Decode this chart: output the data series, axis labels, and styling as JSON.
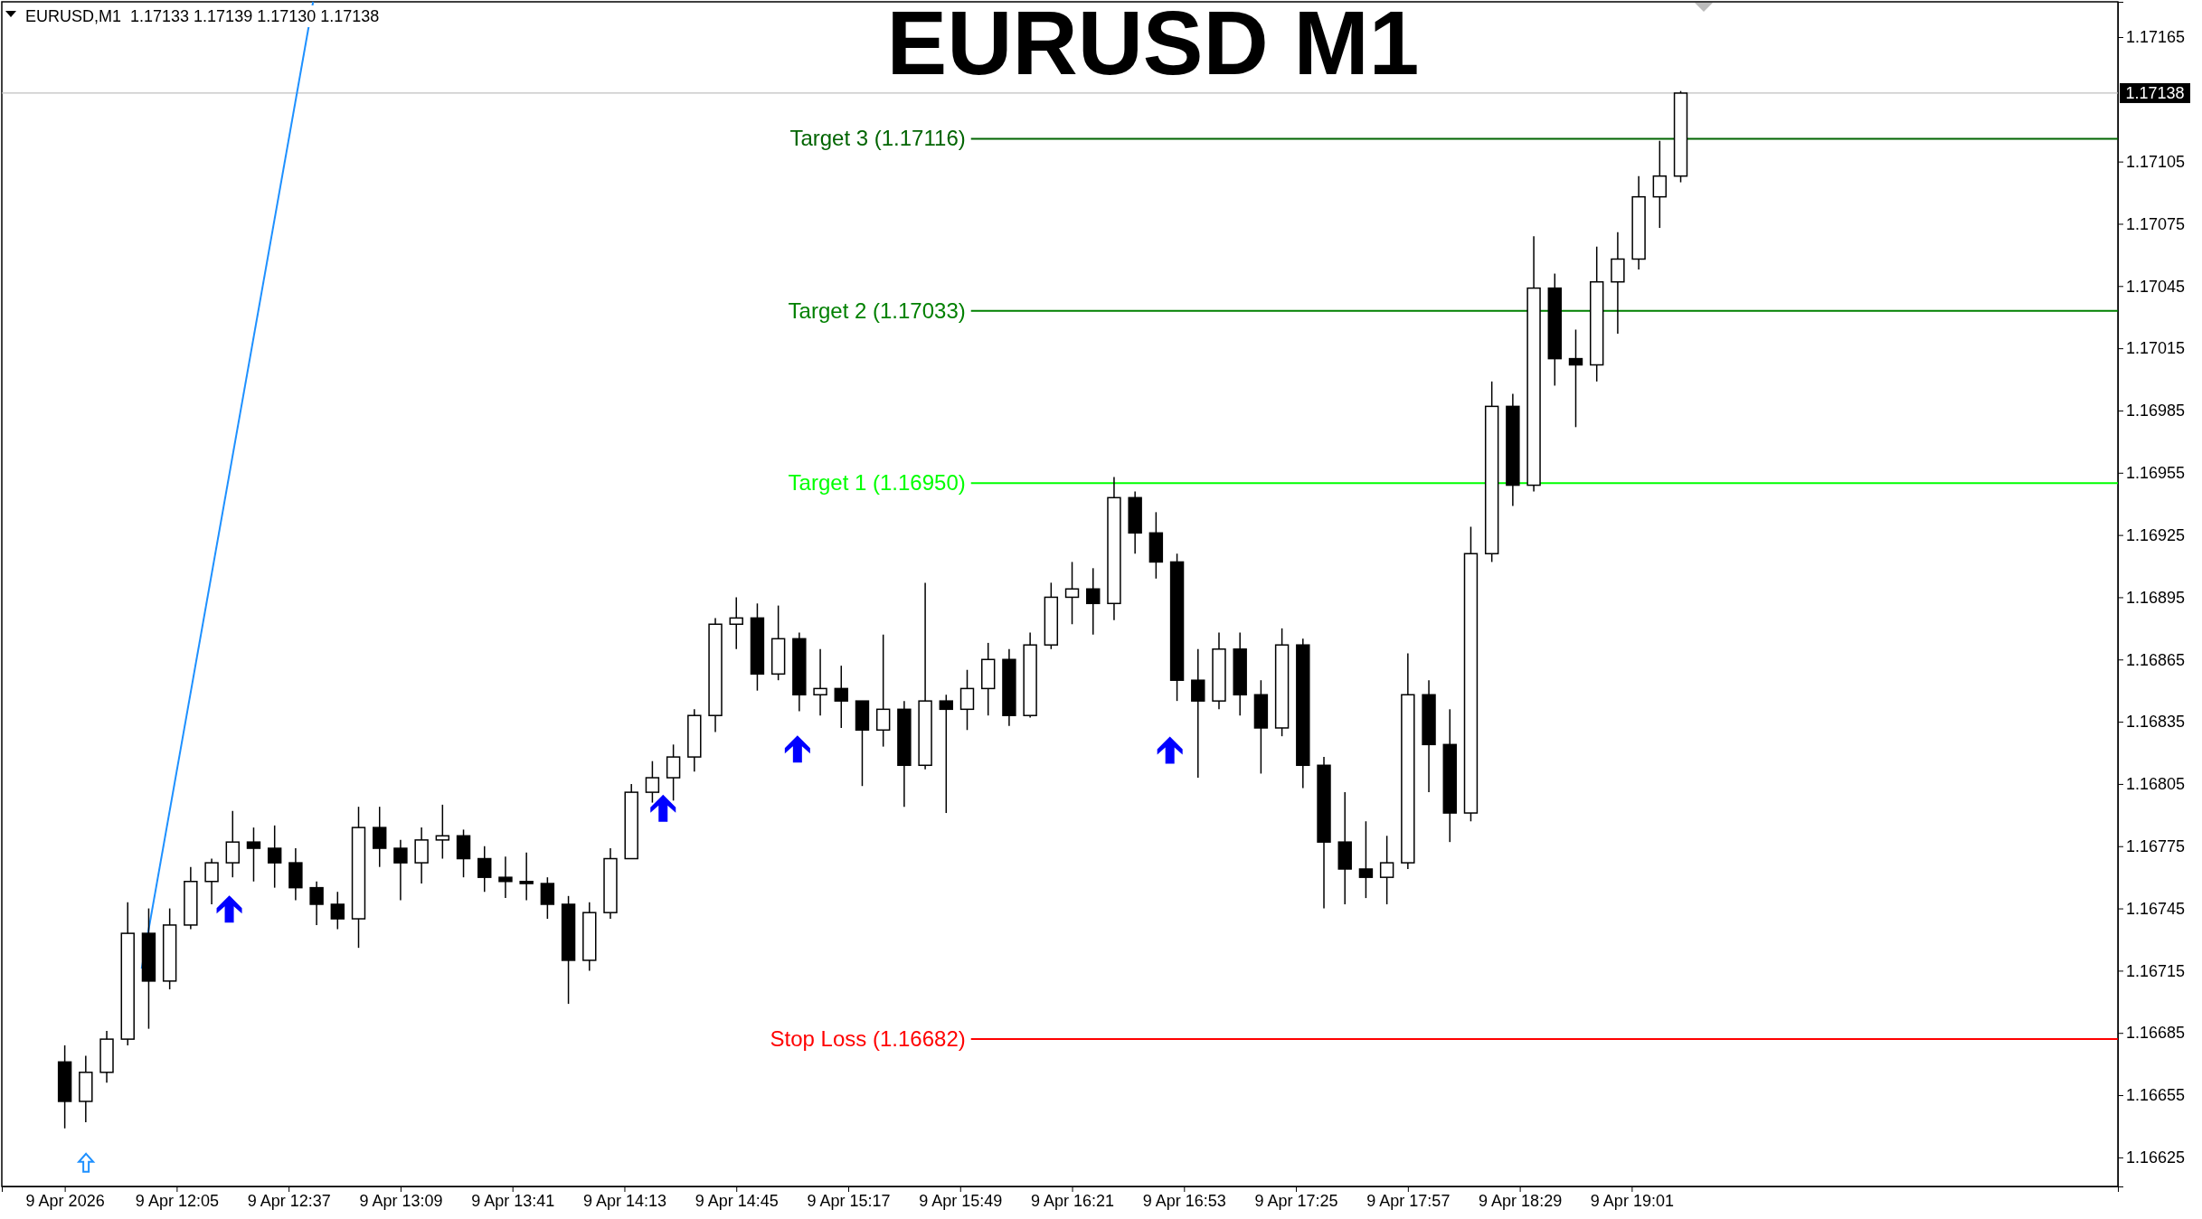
{
  "chart_data": {
    "type": "candlestick",
    "title": "EURUSD M1",
    "annotations": [
      "EURUSD,M1  1.17133 1.17139 1.17130 1.17138"
    ],
    "x": [
      "2026-04-09T11:33",
      "2026-04-09T11:39",
      "2026-04-09T11:45",
      "2026-04-09T11:51",
      "2026-04-09T11:57",
      "2026-04-09T12:03",
      "2026-04-09T12:09",
      "2026-04-09T12:15",
      "2026-04-09T12:21",
      "2026-04-09T12:27",
      "2026-04-09T12:33",
      "2026-04-09T12:39",
      "2026-04-09T12:45",
      "2026-04-09T12:51",
      "2026-04-09T12:57",
      "2026-04-09T13:03",
      "2026-04-09T13:09",
      "2026-04-09T13:15",
      "2026-04-09T13:21",
      "2026-04-09T13:27",
      "2026-04-09T13:33",
      "2026-04-09T13:39",
      "2026-04-09T13:45",
      "2026-04-09T13:51",
      "2026-04-09T13:57",
      "2026-04-09T14:03",
      "2026-04-09T14:09",
      "2026-04-09T14:15",
      "2026-04-09T14:21",
      "2026-04-09T14:27",
      "2026-04-09T14:33",
      "2026-04-09T14:39",
      "2026-04-09T14:45",
      "2026-04-09T14:51",
      "2026-04-09T14:57",
      "2026-04-09T15:03",
      "2026-04-09T15:09",
      "2026-04-09T15:15",
      "2026-04-09T15:21",
      "2026-04-09T15:27",
      "2026-04-09T15:33",
      "2026-04-09T15:39",
      "2026-04-09T15:45",
      "2026-04-09T15:51",
      "2026-04-09T15:57",
      "2026-04-09T16:03",
      "2026-04-09T16:09",
      "2026-04-09T16:15",
      "2026-04-09T16:21",
      "2026-04-09T16:27",
      "2026-04-09T16:33",
      "2026-04-09T16:39",
      "2026-04-09T16:45",
      "2026-04-09T16:51",
      "2026-04-09T16:57",
      "2026-04-09T17:03",
      "2026-04-09T17:09",
      "2026-04-09T17:15",
      "2026-04-09T17:21",
      "2026-04-09T17:27",
      "2026-04-09T17:33",
      "2026-04-09T17:39",
      "2026-04-09T17:45",
      "2026-04-09T17:51",
      "2026-04-09T17:57",
      "2026-04-09T18:03",
      "2026-04-09T18:09",
      "2026-04-09T18:15",
      "2026-04-09T18:21",
      "2026-04-09T18:27",
      "2026-04-09T18:33",
      "2026-04-09T18:39",
      "2026-04-09T18:45",
      "2026-04-09T18:51",
      "2026-04-09T18:57",
      "2026-04-09T19:03",
      "2026-04-09T19:09",
      "2026-04-09T19:15"
    ],
    "ohlc": [
      [
        1.16671,
        1.16679,
        1.16639,
        1.16652
      ],
      [
        1.16652,
        1.16674,
        1.16642,
        1.16666
      ],
      [
        1.16666,
        1.16686,
        1.16661,
        1.16682
      ],
      [
        1.16682,
        1.16748,
        1.16679,
        1.16733
      ],
      [
        1.16733,
        1.16745,
        1.16687,
        1.1671
      ],
      [
        1.1671,
        1.16745,
        1.16706,
        1.16737
      ],
      [
        1.16737,
        1.16765,
        1.16735,
        1.16758
      ],
      [
        1.16758,
        1.16769,
        1.16747,
        1.16767
      ],
      [
        1.16767,
        1.16792,
        1.1676,
        1.16777
      ],
      [
        1.16777,
        1.16784,
        1.16758,
        1.16774
      ],
      [
        1.16774,
        1.16785,
        1.16755,
        1.16767
      ],
      [
        1.16767,
        1.16774,
        1.16749,
        1.16755
      ],
      [
        1.16755,
        1.16758,
        1.16737,
        1.16747
      ],
      [
        1.16747,
        1.16753,
        1.16735,
        1.1674
      ],
      [
        1.1674,
        1.16794,
        1.16726,
        1.16784
      ],
      [
        1.16784,
        1.16794,
        1.16765,
        1.16774
      ],
      [
        1.16774,
        1.16778,
        1.16749,
        1.16767
      ],
      [
        1.16767,
        1.16784,
        1.16757,
        1.16778
      ],
      [
        1.16778,
        1.16795,
        1.16769,
        1.1678
      ],
      [
        1.1678,
        1.16783,
        1.1676,
        1.16769
      ],
      [
        1.16769,
        1.16775,
        1.16753,
        1.1676
      ],
      [
        1.1676,
        1.1677,
        1.1675,
        1.16758
      ],
      [
        1.16758,
        1.16772,
        1.16749,
        1.16757
      ],
      [
        1.16757,
        1.1676,
        1.1674,
        1.16747
      ],
      [
        1.16747,
        1.16751,
        1.16699,
        1.1672
      ],
      [
        1.1672,
        1.16748,
        1.16715,
        1.16743
      ],
      [
        1.16743,
        1.16774,
        1.1674,
        1.16769
      ],
      [
        1.16769,
        1.16805,
        1.16769,
        1.16801
      ],
      [
        1.16801,
        1.16816,
        1.16796,
        1.16808
      ],
      [
        1.16808,
        1.16824,
        1.16797,
        1.16818
      ],
      [
        1.16818,
        1.16841,
        1.16811,
        1.16838
      ],
      [
        1.16838,
        1.16885,
        1.1683,
        1.16882
      ],
      [
        1.16882,
        1.16895,
        1.1687,
        1.16885
      ],
      [
        1.16885,
        1.16892,
        1.1685,
        1.16858
      ],
      [
        1.16858,
        1.16891,
        1.16855,
        1.16875
      ],
      [
        1.16875,
        1.16878,
        1.1684,
        1.16848
      ],
      [
        1.16848,
        1.1687,
        1.16838,
        1.16851
      ],
      [
        1.16851,
        1.16862,
        1.16832,
        1.16845
      ],
      [
        1.16845,
        1.16845,
        1.16804,
        1.16831
      ],
      [
        1.16831,
        1.16877,
        1.16823,
        1.16841
      ],
      [
        1.16841,
        1.16845,
        1.16794,
        1.16814
      ],
      [
        1.16814,
        1.16902,
        1.16812,
        1.16845
      ],
      [
        1.16845,
        1.16848,
        1.16791,
        1.16841
      ],
      [
        1.16841,
        1.1686,
        1.16831,
        1.16851
      ],
      [
        1.16851,
        1.16873,
        1.16838,
        1.16865
      ],
      [
        1.16865,
        1.1687,
        1.16833,
        1.16838
      ],
      [
        1.16838,
        1.16878,
        1.16837,
        1.16872
      ],
      [
        1.16872,
        1.16902,
        1.1687,
        1.16895
      ],
      [
        1.16895,
        1.16912,
        1.16882,
        1.16899
      ],
      [
        1.16899,
        1.16909,
        1.16877,
        1.16892
      ],
      [
        1.16892,
        1.16953,
        1.16884,
        1.16943
      ],
      [
        1.16943,
        1.16946,
        1.16916,
        1.16926
      ],
      [
        1.16926,
        1.16936,
        1.16904,
        1.16912
      ],
      [
        1.16912,
        1.16916,
        1.16845,
        1.16855
      ],
      [
        1.16855,
        1.1687,
        1.16808,
        1.16845
      ],
      [
        1.16845,
        1.16878,
        1.16841,
        1.1687
      ],
      [
        1.1687,
        1.16878,
        1.16838,
        1.16848
      ],
      [
        1.16848,
        1.16855,
        1.1681,
        1.16832
      ],
      [
        1.16832,
        1.1688,
        1.16828,
        1.16872
      ],
      [
        1.16872,
        1.16875,
        1.16803,
        1.16814
      ],
      [
        1.16814,
        1.16818,
        1.16745,
        1.16777
      ],
      [
        1.16777,
        1.16801,
        1.16747,
        1.16764
      ],
      [
        1.16764,
        1.16787,
        1.1675,
        1.1676
      ],
      [
        1.1676,
        1.1678,
        1.16747,
        1.16767
      ],
      [
        1.16767,
        1.16868,
        1.16764,
        1.16848
      ],
      [
        1.16848,
        1.16855,
        1.16801,
        1.16824
      ],
      [
        1.16824,
        1.16841,
        1.16777,
        1.16791
      ],
      [
        1.16791,
        1.16929,
        1.16787,
        1.16916
      ],
      [
        1.16916,
        1.16999,
        1.16912,
        1.16987
      ],
      [
        1.16987,
        1.16993,
        1.16939,
        1.16949
      ],
      [
        1.16949,
        1.17069,
        1.16946,
        1.17044
      ],
      [
        1.17044,
        1.17051,
        1.16997,
        1.1701
      ],
      [
        1.1701,
        1.17024,
        1.16977,
        1.17007
      ],
      [
        1.17007,
        1.17064,
        1.16999,
        1.17047
      ],
      [
        1.17047,
        1.17071,
        1.17022,
        1.17058
      ],
      [
        1.17058,
        1.17098,
        1.17053,
        1.17088
      ],
      [
        1.17088,
        1.17115,
        1.17073,
        1.17098
      ],
      [
        1.17098,
        1.17139,
        1.17095,
        1.17138
      ]
    ],
    "series": [
      {
        "type": "line",
        "x": [
          "2026-04-09T11:55",
          "2026-04-09T12:44"
        ],
        "values": [
          1.16716,
          1.17182
        ],
        "color": "#1e90ff"
      }
    ],
    "marker": "none",
    "xlim": [
      "2026-04-09T11:15",
      "2026-04-09T21:20"
    ],
    "xticks": [
      {
        "value": "2026-04-09T11:33",
        "label": "9 Apr 2026"
      },
      {
        "value": "2026-04-09T12:05",
        "label": "9 Apr 12:05"
      },
      {
        "value": "2026-04-09T12:37",
        "label": "9 Apr 12:37"
      },
      {
        "value": "2026-04-09T13:09",
        "label": "9 Apr 13:09"
      },
      {
        "value": "2026-04-09T13:41",
        "label": "9 Apr 13:41"
      },
      {
        "value": "2026-04-09T14:13",
        "label": "9 Apr 14:13"
      },
      {
        "value": "2026-04-09T14:45",
        "label": "9 Apr 14:45"
      },
      {
        "value": "2026-04-09T15:17",
        "label": "9 Apr 15:17"
      },
      {
        "value": "2026-04-09T15:49",
        "label": "9 Apr 15:49"
      },
      {
        "value": "2026-04-09T16:21",
        "label": "9 Apr 16:21"
      },
      {
        "value": "2026-04-09T16:53",
        "label": "9 Apr 16:53"
      },
      {
        "value": "2026-04-09T17:25",
        "label": "9 Apr 17:25"
      },
      {
        "value": "2026-04-09T17:57",
        "label": "9 Apr 17:57"
      },
      {
        "value": "2026-04-09T18:29",
        "label": "9 Apr 18:29"
      },
      {
        "value": "2026-04-09T19:01",
        "label": "9 Apr 19:01"
      }
    ],
    "ylim": [
      1.16611,
      1.17182
    ],
    "yticks": [
      1.16625,
      1.16655,
      1.16685,
      1.16715,
      1.16745,
      1.16775,
      1.16805,
      1.16835,
      1.16865,
      1.16895,
      1.16925,
      1.16955,
      1.16985,
      1.17015,
      1.17045,
      1.17075,
      1.17105,
      1.17165
    ],
    "ref_lines": [
      {
        "axis": "y",
        "value": 1.17116,
        "label": "Target 3 (1.17116)",
        "color": "#006400"
      },
      {
        "axis": "y",
        "value": 1.17033,
        "label": "Target 2 (1.17033)",
        "color": "#008000"
      },
      {
        "axis": "y",
        "value": 1.1695,
        "label": "Target 1 (1.16950)",
        "color": "#00ff00"
      },
      {
        "axis": "y",
        "value": 1.16682,
        "label": "Stop Loss (1.16682)",
        "color": "#ff0000"
      },
      {
        "axis": "y",
        "value": 1.17138,
        "label": "1.17138",
        "color": "#c0c0c0"
      }
    ]
  }
}
